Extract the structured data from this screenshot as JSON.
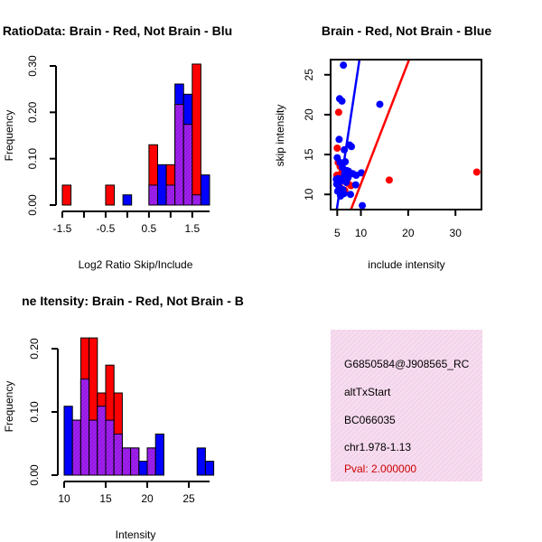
{
  "colors": {
    "red": "#ff0000",
    "blue": "#0000ff",
    "overlap": "#a020f0",
    "pink": "#f6dcef",
    "pval": "#cc0000"
  },
  "chart_data": [
    {
      "id": "ratio_hist",
      "type": "bar",
      "title": "RatioData: Brain - Red, Not Brain - Blu",
      "xlabel": "Log2 Ratio Skip/Include",
      "ylabel": "Frequency",
      "xticks": [
        -1.5,
        -0.5,
        0.5,
        1.5
      ],
      "xtick_labels": [
        "-1.5",
        "-0.5",
        "0.5",
        "1.5"
      ],
      "xticks_minor": [
        -1.0,
        0.0,
        1.0
      ],
      "yticks": [
        0.0,
        0.1,
        0.2,
        0.3
      ],
      "ytick_labels": [
        "0.00",
        "0.10",
        "0.20",
        "0.30"
      ],
      "ylim": [
        0,
        0.3
      ],
      "xlim": [
        -1.5,
        1.9
      ],
      "bin_width": 0.2,
      "bin_starts": [
        -1.5,
        -1.3,
        -1.1,
        -0.9,
        -0.7,
        -0.5,
        -0.3,
        -0.1,
        0.1,
        0.3,
        0.5,
        0.7,
        0.9,
        1.1,
        1.3,
        1.5,
        1.7
      ],
      "series": [
        {
          "name": "Brain",
          "color": "#ff0000",
          "values": [
            0.043,
            0,
            0,
            0,
            0,
            0.043,
            0,
            0,
            0,
            0,
            0.13,
            0,
            0.087,
            0.217,
            0.174,
            0.304,
            0
          ]
        },
        {
          "name": "Not Brain",
          "color": "#0000ff",
          "values": [
            0,
            0,
            0,
            0,
            0,
            0,
            0,
            0.022,
            0,
            0,
            0.043,
            0.087,
            0.043,
            0.261,
            0.239,
            0.022,
            0.065
          ]
        }
      ]
    },
    {
      "id": "scatter",
      "type": "scatter",
      "title": "Brain - Red, Not Brain - Blue",
      "xlabel": "include intensity",
      "ylabel": "skip intensity",
      "xticks": [
        5,
        10,
        20,
        30
      ],
      "xtick_labels": [
        "5",
        "10",
        "20",
        "30"
      ],
      "yticks": [
        10,
        15,
        20,
        25
      ],
      "ytick_labels": [
        "10",
        "15",
        "20",
        "25"
      ],
      "xlim": [
        3.6,
        35.5
      ],
      "ylim": [
        8.1,
        26.9
      ],
      "series": [
        {
          "name": "Brain",
          "color": "#ff0000",
          "points": [
            [
              5.3,
              20.3
            ],
            [
              5.0,
              15.8
            ],
            [
              5.2,
              14.0
            ],
            [
              5.6,
              13.5
            ],
            [
              6.0,
              12.8
            ],
            [
              6.3,
              12.2
            ],
            [
              6.8,
              11.9
            ],
            [
              7.2,
              11.4
            ],
            [
              16.0,
              11.8
            ],
            [
              34.5,
              12.8
            ],
            [
              5.5,
              11.0
            ],
            [
              5.8,
              10.2
            ],
            [
              6.6,
              10.5
            ],
            [
              7.9,
              11.1
            ],
            [
              4.9,
              12.4
            ]
          ]
        },
        {
          "name": "Not Brain",
          "color": "#0000ff",
          "points": [
            [
              6.3,
              26.2
            ],
            [
              5.5,
              22.0
            ],
            [
              6.0,
              21.7
            ],
            [
              14.0,
              21.3
            ],
            [
              5.4,
              16.9
            ],
            [
              6.5,
              15.6
            ],
            [
              7.6,
              16.2
            ],
            [
              8.0,
              16.0
            ],
            [
              5.0,
              14.6
            ],
            [
              5.6,
              14.0
            ],
            [
              6.1,
              13.4
            ],
            [
              7.0,
              13.0
            ],
            [
              6.6,
              12.4
            ],
            [
              5.2,
              12.0
            ],
            [
              5.8,
              11.7
            ],
            [
              4.9,
              11.3
            ],
            [
              5.4,
              10.9
            ],
            [
              6.2,
              10.6
            ],
            [
              6.9,
              11.5
            ],
            [
              7.3,
              12.1
            ],
            [
              8.3,
              12.6
            ],
            [
              9.0,
              12.4
            ],
            [
              10.1,
              12.7
            ],
            [
              5.1,
              10.4
            ],
            [
              5.7,
              9.8
            ],
            [
              6.4,
              10.1
            ],
            [
              7.8,
              10.0
            ],
            [
              8.9,
              11.2
            ],
            [
              10.3,
              8.6
            ],
            [
              4.8,
              11.9
            ],
            [
              6.7,
              14.1
            ],
            [
              7.4,
              12.9
            ]
          ]
        }
      ],
      "fit_lines": [
        {
          "name": "Not Brain fit",
          "color": "#0000ff",
          "from": [
            4.9,
            8.1
          ],
          "to": [
            9.7,
            26.9
          ]
        },
        {
          "name": "Brain fit",
          "color": "#ff0000",
          "from": [
            7.9,
            8.1
          ],
          "to": [
            20.2,
            26.9
          ]
        }
      ]
    },
    {
      "id": "intensity_hist",
      "type": "bar",
      "title": "Exon Intensity: Brain - Red, Not Brain - B",
      "visible_title": "ne Itensity: Brain - Red, Not Brain - B",
      "xlabel": "Intensity",
      "ylabel": "Frequency",
      "xticks": [
        10,
        15,
        20,
        25
      ],
      "xtick_labels": [
        "10",
        "15",
        "20",
        "25"
      ],
      "yticks": [
        0.0,
        0.1,
        0.2
      ],
      "ytick_labels": [
        "0.00",
        "0.10",
        "0.20"
      ],
      "ylim": [
        0,
        0.22
      ],
      "xlim": [
        10,
        27.5
      ],
      "bin_width": 1,
      "bin_starts": [
        10,
        11,
        12,
        13,
        14,
        15,
        16,
        17,
        18,
        19,
        20,
        21,
        22,
        23,
        24,
        25,
        26,
        27
      ],
      "series": [
        {
          "name": "Brain",
          "color": "#ff0000",
          "values": [
            0,
            0.087,
            0.217,
            0.217,
            0.13,
            0.174,
            0.13,
            0.043,
            0.043,
            0,
            0.043,
            0,
            0,
            0,
            0,
            0,
            0,
            0
          ]
        },
        {
          "name": "Not Brain",
          "color": "#0000ff",
          "values": [
            0.109,
            0.087,
            0.152,
            0.087,
            0.109,
            0.087,
            0.065,
            0.043,
            0.043,
            0.022,
            0.043,
            0.065,
            0,
            0,
            0,
            0,
            0.043,
            0.022
          ]
        }
      ]
    }
  ],
  "info_panel": {
    "lines": [
      "G6850584@J908565_RC",
      "altTxStart",
      "BC066035",
      "chr1.978-1.13"
    ],
    "pval": "Pval: 2.000000"
  }
}
